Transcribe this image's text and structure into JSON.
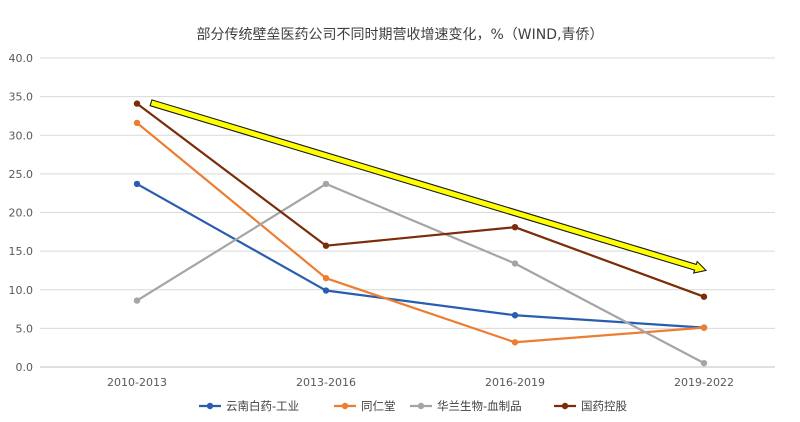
{
  "chart_data": {
    "type": "line",
    "title": "部分传统壁垒医药公司不同时期营收增速变化，%（WIND,青侨）",
    "categories": [
      "2010-2013",
      "2013-2016",
      "2016-2019",
      "2019-2022"
    ],
    "ylim": [
      0,
      40
    ],
    "yticks": [
      "0.0",
      "5.0",
      "10.0",
      "15.0",
      "20.0",
      "25.0",
      "30.0",
      "35.0",
      "40.0"
    ],
    "grid": true,
    "legend_position": "bottom",
    "series": [
      {
        "name": "云南白药-工业",
        "color": "#2a5db0",
        "values": [
          23.7,
          9.9,
          6.7,
          5.1
        ]
      },
      {
        "name": "同仁堂",
        "color": "#ed7d31",
        "values": [
          31.6,
          11.5,
          3.2,
          5.1
        ]
      },
      {
        "name": "华兰生物-血制品",
        "color": "#a5a5a5",
        "values": [
          8.6,
          23.7,
          13.4,
          0.5
        ]
      },
      {
        "name": "国药控股",
        "color": "#7b2c09",
        "values": [
          34.1,
          15.7,
          18.1,
          9.1
        ]
      }
    ],
    "annotation": {
      "type": "trend-arrow",
      "color": "#ffff00",
      "from": [
        0,
        34.2
      ],
      "to": [
        3,
        12.5
      ]
    }
  }
}
